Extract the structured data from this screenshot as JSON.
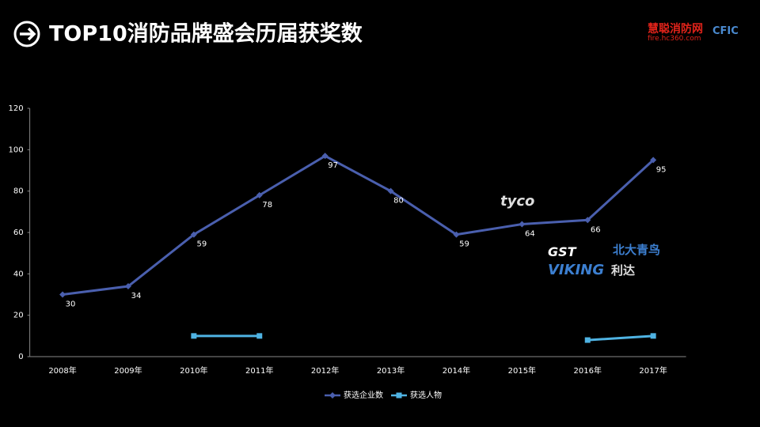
{
  "header": {
    "title": "TOP10消防品牌盛会历届获奖数"
  },
  "logos": [
    "慧聪消防网",
    "fire.hc360.com",
    "CFIC",
    "tyco",
    "GST",
    "北大青鸟",
    "VIKING",
    "利达"
  ],
  "chart_data": {
    "type": "line",
    "categories": [
      "2008年",
      "2009年",
      "2010年",
      "2011年",
      "2012年",
      "2013年",
      "2014年",
      "2015年",
      "2016年",
      "2017年"
    ],
    "series": [
      {
        "name": "获选企业数",
        "color": "#4a5fae",
        "marker": "diamond",
        "values": [
          30,
          34,
          59,
          78,
          97,
          80,
          59,
          64,
          66,
          95
        ]
      },
      {
        "name": "获选人物",
        "color": "#4fb3e3",
        "marker": "square",
        "values": [
          null,
          null,
          10,
          10,
          null,
          null,
          null,
          null,
          8,
          10
        ]
      }
    ],
    "ylim": [
      0,
      120
    ],
    "yticks": [
      0,
      20,
      40,
      60,
      80,
      100,
      120
    ],
    "grid": false,
    "legend": "bottom"
  }
}
